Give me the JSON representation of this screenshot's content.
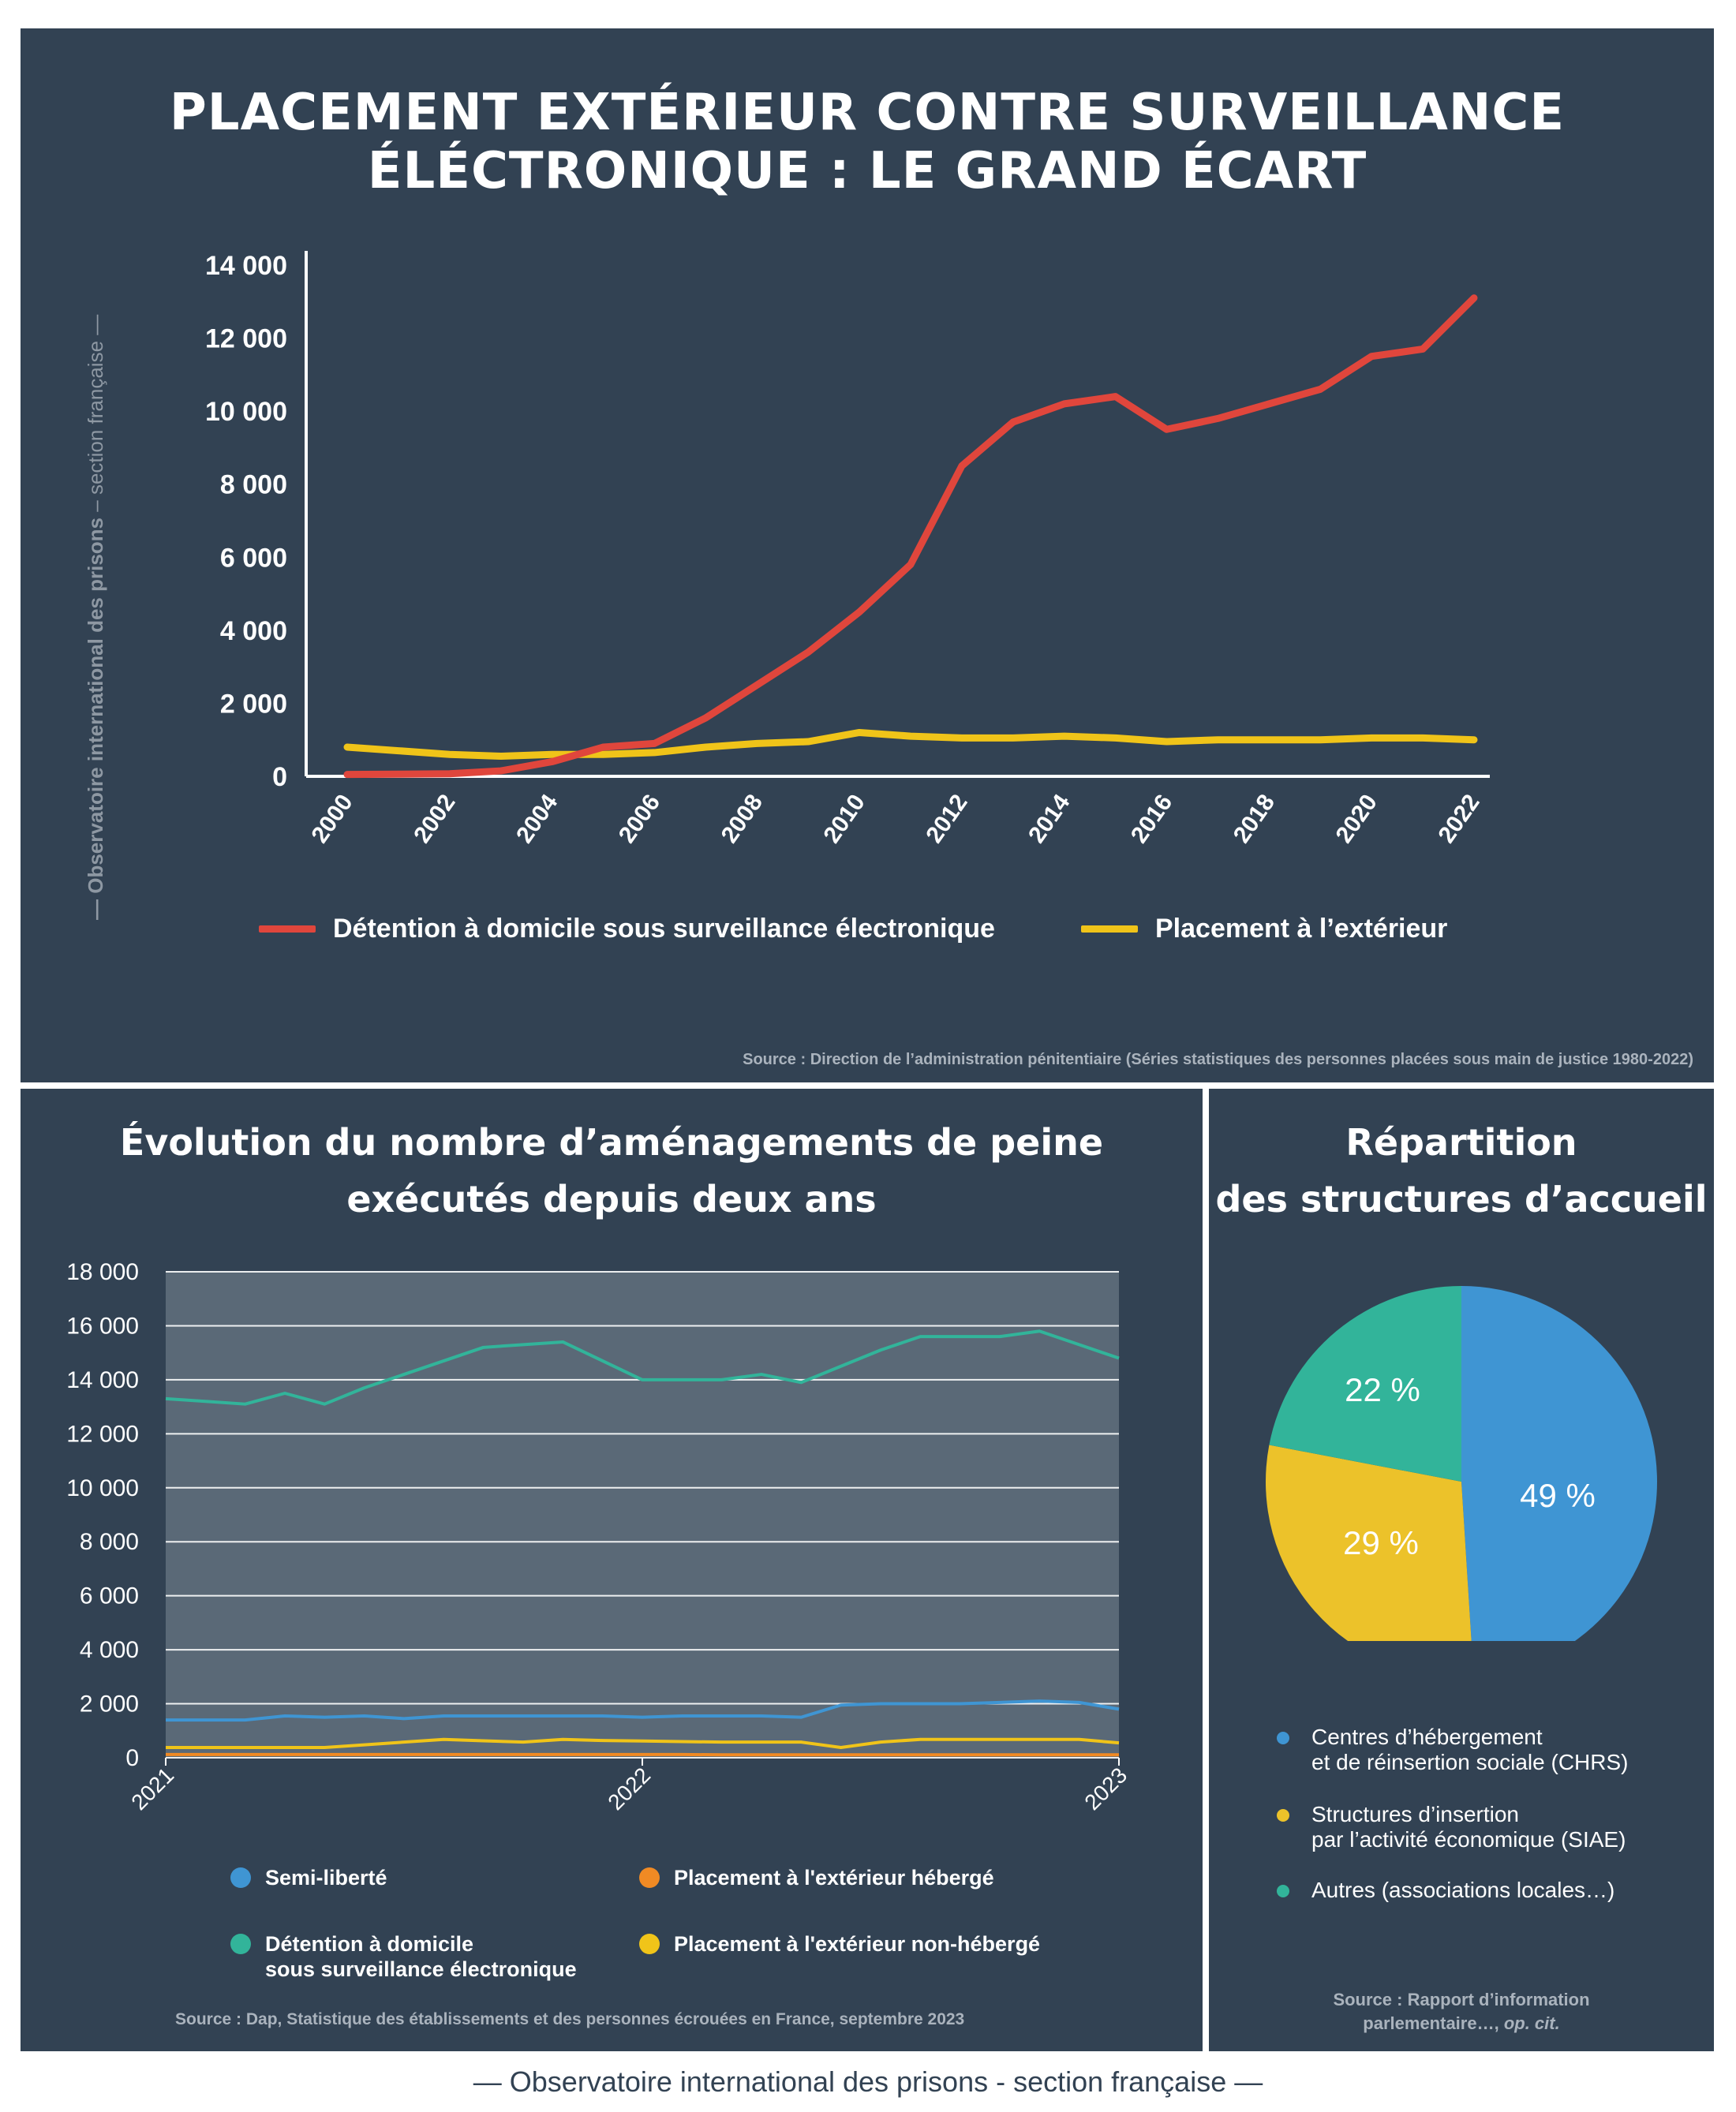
{
  "main_title": "Placement extérieur contre surveillance éléctronique : le grand écart",
  "side_label": {
    "bold": "— Observatoire international des prisons",
    "rest": " – section française —"
  },
  "footer": "— Observatoire international des prisons - section française —",
  "colors": {
    "panel": "#324253",
    "red": "#e0463c",
    "yellow": "#f0c419",
    "blue": "#3f95d3",
    "orange": "#f08a24",
    "teal": "#32b49a",
    "pie_blue": "#3f95d3",
    "pie_yellow": "#ecc22a",
    "pie_teal": "#32b49a"
  },
  "chart_data": [
    {
      "type": "line",
      "x": [
        2000,
        2001,
        2002,
        2003,
        2004,
        2005,
        2006,
        2007,
        2008,
        2009,
        2010,
        2011,
        2012,
        2013,
        2014,
        2015,
        2016,
        2017,
        2018,
        2019,
        2020,
        2021,
        2022
      ],
      "xticks": [
        "2000",
        "2002",
        "2004",
        "2006",
        "2008",
        "2010",
        "2012",
        "2014",
        "2016",
        "2018",
        "2020",
        "2022"
      ],
      "yticks": [
        "0",
        "2 000",
        "4 000",
        "6 000",
        "8 000",
        "10 000",
        "12 000",
        "14 000"
      ],
      "ylim": [
        0,
        14000
      ],
      "series": [
        {
          "name": "Détention à domicile sous surveillance électronique",
          "color": "#e0463c",
          "values": [
            50,
            60,
            70,
            150,
            400,
            800,
            900,
            1600,
            2500,
            3400,
            4500,
            5800,
            8500,
            9700,
            10200,
            10400,
            9500,
            9800,
            10200,
            10600,
            11500,
            11700,
            13100
          ]
        },
        {
          "name": "Placement à l’extérieur",
          "color": "#f0c419",
          "values": [
            800,
            700,
            600,
            550,
            600,
            600,
            650,
            800,
            900,
            950,
            1200,
            1100,
            1050,
            1050,
            1100,
            1050,
            950,
            1000,
            1000,
            1000,
            1050,
            1050,
            1000
          ]
        }
      ],
      "source": "Source : Direction de l’administration pénitentiaire (Séries statistiques des personnes placées sous main de justice 1980-2022)"
    },
    {
      "type": "line",
      "title_line1": "Évolution du nombre d’aménagements de peine",
      "title_line2": "exécutés depuis deux ans",
      "xticks": [
        "2021",
        "2022",
        "2023"
      ],
      "yticks": [
        "0",
        "2 000",
        "4 000",
        "6 000",
        "8 000",
        "10 000",
        "12 000",
        "14 000",
        "16 000",
        "18 000"
      ],
      "ylim": [
        0,
        18000
      ],
      "series": [
        {
          "name": "Détention à domicile sous surveillance électronique",
          "color": "#32b49a",
          "values": [
            13300,
            13200,
            13100,
            13500,
            13100,
            13700,
            14200,
            14700,
            15200,
            15300,
            15400,
            14700,
            14000,
            14000,
            14000,
            14200,
            13900,
            14500,
            15100,
            15600,
            15600,
            15600,
            15800,
            15300,
            14800
          ]
        },
        {
          "name": "Semi-liberté",
          "color": "#3f95d3",
          "values": [
            1400,
            1400,
            1400,
            1550,
            1500,
            1550,
            1450,
            1550,
            1550,
            1550,
            1550,
            1550,
            1500,
            1550,
            1550,
            1550,
            1500,
            1950,
            2000,
            2000,
            2000,
            2050,
            2100,
            2050,
            1800
          ]
        },
        {
          "name": "Placement à l'extérieur non-hébergé",
          "color": "#f0c419",
          "values": [
            380,
            380,
            380,
            380,
            380,
            480,
            580,
            680,
            630,
            580,
            680,
            640,
            620,
            600,
            580,
            580,
            580,
            380,
            580,
            680,
            680,
            680,
            680,
            680,
            550
          ]
        },
        {
          "name": "Placement à l'extérieur hébergé",
          "color": "#f08a24",
          "values": [
            120,
            120,
            120,
            120,
            120,
            120,
            120,
            120,
            120,
            120,
            120,
            120,
            120,
            120,
            110,
            110,
            110,
            110,
            110,
            110,
            110,
            110,
            110,
            110,
            110
          ]
        }
      ],
      "legend": [
        {
          "label": "Semi-liberté",
          "color": "#3f95d3"
        },
        {
          "label": "Placement à l'extérieur hébergé",
          "color": "#f08a24"
        },
        {
          "label": "Détention à domicile\nsous surveillance électronique",
          "color": "#32b49a"
        },
        {
          "label": "Placement à l'extérieur non-hébergé",
          "color": "#f0c419"
        }
      ],
      "source": "Source : Dap, Statistique des établissements et des personnes écrouées en France, septembre 2023"
    },
    {
      "type": "pie",
      "title_line1": "Répartition",
      "title_line2": "des structures d’accueil",
      "slices": [
        {
          "label": "Centres d’hébergement\net de réinsertion sociale (CHRS)",
          "value": 49,
          "display": "49 %",
          "color": "#3f95d3"
        },
        {
          "label": "Structures d’insertion\npar l’activité économique (SIAE)",
          "value": 29,
          "display": "29 %",
          "color": "#ecc22a"
        },
        {
          "label": "Autres (associations locales…)",
          "value": 22,
          "display": "22 %",
          "color": "#32b49a"
        }
      ],
      "source_line1": "Source : Rapport d’information",
      "source_line2": "parlementaire…, ",
      "source_italic": "op. cit."
    }
  ]
}
